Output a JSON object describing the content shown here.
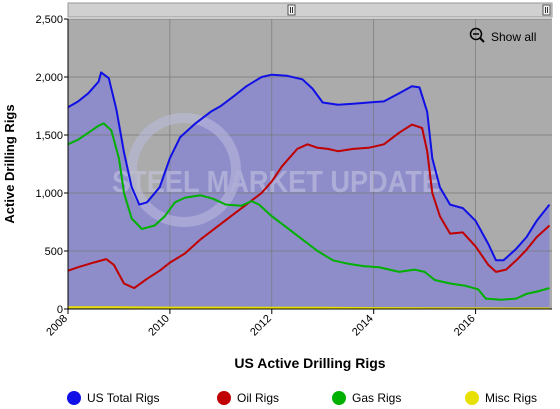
{
  "chart_data": {
    "type": "area",
    "title": "",
    "xlabel": "US Active Drilling Rigs",
    "ylabel": "Active Drilling Rigs",
    "xlim": [
      2008.0,
      2017.5
    ],
    "ylim": [
      0,
      2500
    ],
    "x_ticks": [
      2008,
      2010,
      2012,
      2014,
      2016
    ],
    "x_tick_labels": [
      "2008",
      "2010",
      "2012",
      "2014",
      "2016"
    ],
    "y_ticks": [
      0,
      500,
      1000,
      1500,
      2000,
      2500
    ],
    "y_tick_labels": [
      "0",
      "500",
      "1,000",
      "1,500",
      "2,000",
      "2,500"
    ],
    "grid": true,
    "legend_position": "bottom",
    "watermark": "STEEL MARKET UPDATE",
    "show_all_label": "Show all",
    "series": [
      {
        "name": "US Total Rigs",
        "color": "#1010e6",
        "fill": true,
        "points": [
          [
            2008.0,
            1740
          ],
          [
            2008.2,
            1790
          ],
          [
            2008.4,
            1860
          ],
          [
            2008.6,
            1960
          ],
          [
            2008.65,
            2040
          ],
          [
            2008.8,
            1990
          ],
          [
            2008.95,
            1720
          ],
          [
            2009.1,
            1350
          ],
          [
            2009.25,
            1050
          ],
          [
            2009.4,
            900
          ],
          [
            2009.55,
            920
          ],
          [
            2009.8,
            1050
          ],
          [
            2010.0,
            1300
          ],
          [
            2010.2,
            1480
          ],
          [
            2010.5,
            1600
          ],
          [
            2010.8,
            1700
          ],
          [
            2011.0,
            1750
          ],
          [
            2011.3,
            1850
          ],
          [
            2011.5,
            1920
          ],
          [
            2011.8,
            2000
          ],
          [
            2012.0,
            2020
          ],
          [
            2012.3,
            2010
          ],
          [
            2012.6,
            1980
          ],
          [
            2012.8,
            1900
          ],
          [
            2013.0,
            1780
          ],
          [
            2013.3,
            1760
          ],
          [
            2013.6,
            1770
          ],
          [
            2013.9,
            1780
          ],
          [
            2014.2,
            1790
          ],
          [
            2014.5,
            1860
          ],
          [
            2014.75,
            1920
          ],
          [
            2014.9,
            1910
          ],
          [
            2015.05,
            1700
          ],
          [
            2015.15,
            1300
          ],
          [
            2015.3,
            1050
          ],
          [
            2015.5,
            900
          ],
          [
            2015.75,
            870
          ],
          [
            2016.0,
            760
          ],
          [
            2016.25,
            560
          ],
          [
            2016.4,
            420
          ],
          [
            2016.55,
            420
          ],
          [
            2016.8,
            520
          ],
          [
            2017.0,
            620
          ],
          [
            2017.2,
            760
          ],
          [
            2017.45,
            900
          ]
        ]
      },
      {
        "name": "Oil Rigs",
        "color": "#c00000",
        "fill": false,
        "points": [
          [
            2008.0,
            330
          ],
          [
            2008.2,
            360
          ],
          [
            2008.5,
            400
          ],
          [
            2008.75,
            430
          ],
          [
            2008.9,
            380
          ],
          [
            2009.1,
            220
          ],
          [
            2009.3,
            180
          ],
          [
            2009.55,
            260
          ],
          [
            2009.8,
            330
          ],
          [
            2010.0,
            400
          ],
          [
            2010.3,
            480
          ],
          [
            2010.6,
            600
          ],
          [
            2010.9,
            700
          ],
          [
            2011.2,
            800
          ],
          [
            2011.5,
            900
          ],
          [
            2011.8,
            1000
          ],
          [
            2012.0,
            1100
          ],
          [
            2012.2,
            1230
          ],
          [
            2012.5,
            1380
          ],
          [
            2012.7,
            1420
          ],
          [
            2012.9,
            1390
          ],
          [
            2013.1,
            1380
          ],
          [
            2013.3,
            1360
          ],
          [
            2013.6,
            1380
          ],
          [
            2013.9,
            1390
          ],
          [
            2014.2,
            1420
          ],
          [
            2014.5,
            1520
          ],
          [
            2014.75,
            1590
          ],
          [
            2014.95,
            1560
          ],
          [
            2015.05,
            1360
          ],
          [
            2015.15,
            1000
          ],
          [
            2015.3,
            800
          ],
          [
            2015.5,
            650
          ],
          [
            2015.75,
            660
          ],
          [
            2016.0,
            540
          ],
          [
            2016.25,
            380
          ],
          [
            2016.4,
            320
          ],
          [
            2016.6,
            340
          ],
          [
            2016.8,
            420
          ],
          [
            2017.0,
            510
          ],
          [
            2017.2,
            620
          ],
          [
            2017.45,
            720
          ]
        ]
      },
      {
        "name": "Gas Rigs",
        "color": "#00b000",
        "fill": false,
        "points": [
          [
            2008.0,
            1420
          ],
          [
            2008.2,
            1460
          ],
          [
            2008.4,
            1520
          ],
          [
            2008.6,
            1580
          ],
          [
            2008.7,
            1600
          ],
          [
            2008.85,
            1540
          ],
          [
            2009.0,
            1300
          ],
          [
            2009.1,
            1000
          ],
          [
            2009.25,
            780
          ],
          [
            2009.45,
            690
          ],
          [
            2009.7,
            720
          ],
          [
            2009.9,
            800
          ],
          [
            2010.1,
            920
          ],
          [
            2010.3,
            960
          ],
          [
            2010.6,
            980
          ],
          [
            2010.85,
            950
          ],
          [
            2011.1,
            900
          ],
          [
            2011.4,
            890
          ],
          [
            2011.6,
            930
          ],
          [
            2011.75,
            900
          ],
          [
            2012.0,
            800
          ],
          [
            2012.3,
            700
          ],
          [
            2012.6,
            600
          ],
          [
            2012.9,
            500
          ],
          [
            2013.2,
            420
          ],
          [
            2013.5,
            390
          ],
          [
            2013.8,
            370
          ],
          [
            2014.1,
            360
          ],
          [
            2014.5,
            320
          ],
          [
            2014.8,
            340
          ],
          [
            2015.0,
            320
          ],
          [
            2015.2,
            250
          ],
          [
            2015.5,
            220
          ],
          [
            2015.8,
            200
          ],
          [
            2016.05,
            170
          ],
          [
            2016.2,
            90
          ],
          [
            2016.5,
            80
          ],
          [
            2016.8,
            90
          ],
          [
            2017.0,
            130
          ],
          [
            2017.2,
            150
          ],
          [
            2017.45,
            180
          ]
        ]
      },
      {
        "name": "Misc Rigs",
        "color": "#e8e000",
        "fill": false,
        "points": [
          [
            2008.0,
            15
          ],
          [
            2009.0,
            15
          ],
          [
            2010.0,
            12
          ],
          [
            2011.0,
            12
          ],
          [
            2012.0,
            10
          ],
          [
            2013.0,
            10
          ],
          [
            2014.0,
            8
          ],
          [
            2015.0,
            6
          ],
          [
            2016.0,
            5
          ],
          [
            2017.0,
            4
          ],
          [
            2017.45,
            4
          ]
        ]
      }
    ]
  }
}
